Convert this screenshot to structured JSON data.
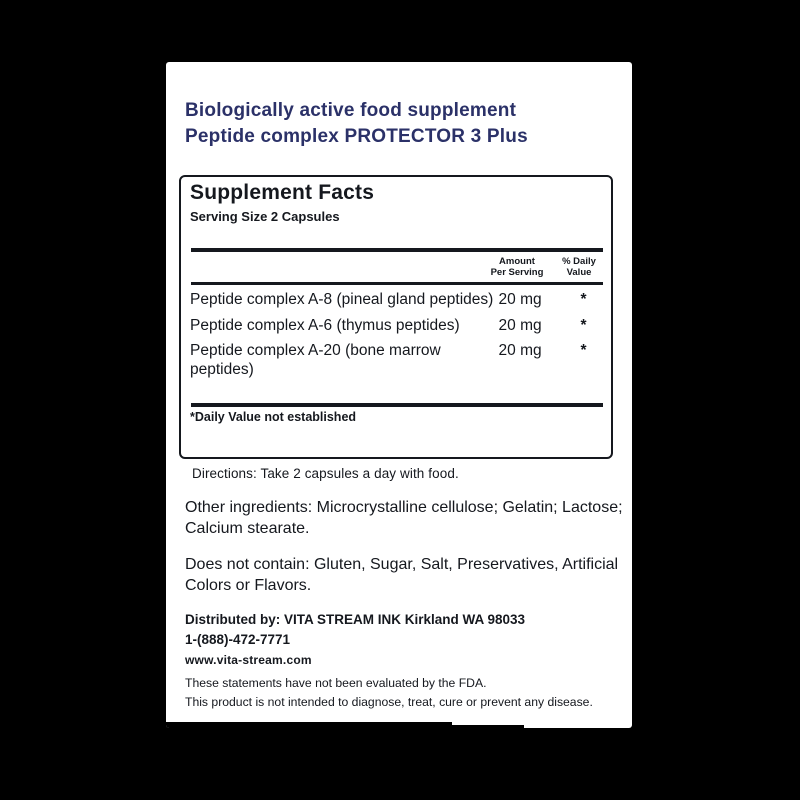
{
  "colors": {
    "page_bg": "#000000",
    "label_bg": "#ffffff",
    "accent": "#2b3168",
    "ink": "#15181e"
  },
  "header": {
    "line1": "Biologically active food supplement",
    "line2": "Peptide complex PROTECTOR 3 Plus"
  },
  "facts": {
    "title": "Supplement Facts",
    "serving": "Serving Size 2 Capsules",
    "col_amount": "Amount\nPer Serving",
    "col_dv": "% Daily\nValue",
    "rows": [
      {
        "name": "Peptide complex A-8 (pineal gland peptides)",
        "amount": "20 mg",
        "dv": "*"
      },
      {
        "name": "Peptide complex A-6 (thymus peptides)",
        "amount": "20 mg",
        "dv": "*"
      },
      {
        "name": "Peptide complex A-20 (bone marrow peptides)",
        "amount": "20 mg",
        "dv": "*"
      }
    ],
    "footnote": "*Daily Value not established"
  },
  "directions": "Directions: Take 2 capsules a day with food.",
  "other_ingredients": "Other ingredients: Microcrystalline cellulose; Gelatin; Lactose; Calcium stearate.",
  "does_not_contain": "Does not contain: Gluten, Sugar, Salt, Preservatives, Artificial Colors or Flavors.",
  "distributor": {
    "line1": "Distributed by: VITA STREAM INK Kirkland WA 98033",
    "phone": "1-(888)-472-7771",
    "website": "www.vita-stream.com"
  },
  "disclaimer": {
    "line1": "These statements have not been evaluated by the FDA.",
    "line2": "This product is not intended to diagnose, treat, cure or prevent any disease."
  }
}
